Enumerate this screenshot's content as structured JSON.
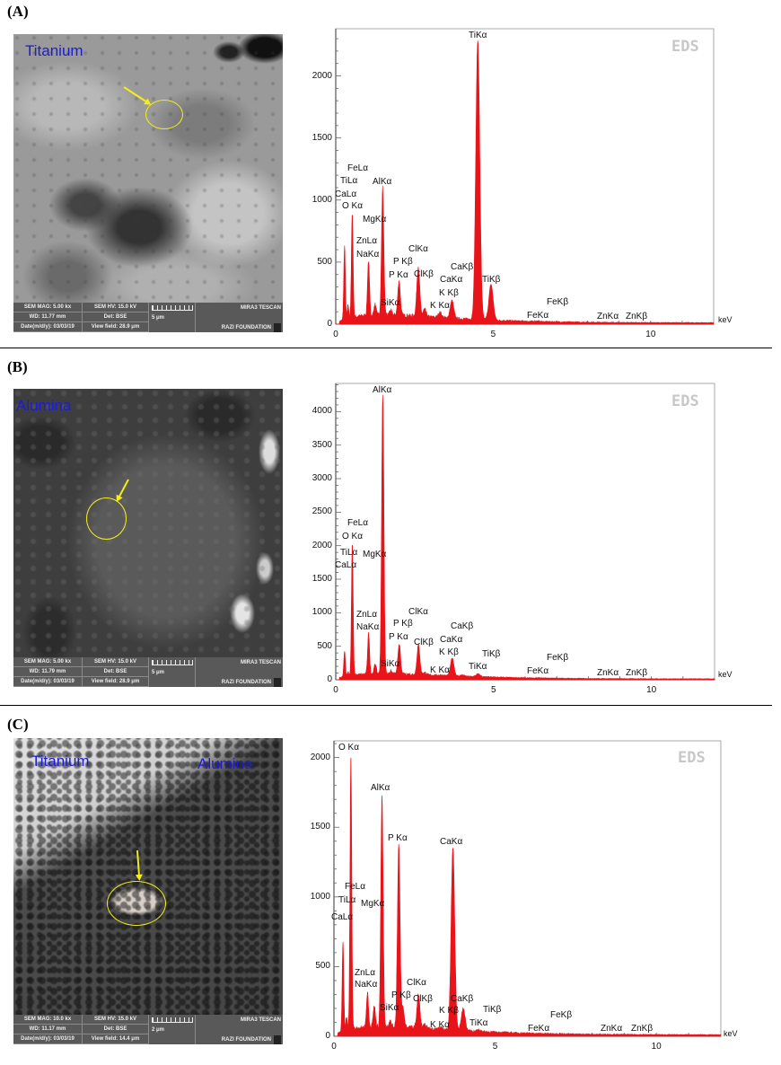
{
  "panels": [
    {
      "label": "(A)",
      "sem": {
        "material_labels": [
          "Titanium"
        ],
        "info": {
          "mag": "SEM MAG: 5.00 kx",
          "hv": "SEM HV: 15.0 kV",
          "vendor": "MIRA3 TESCAN",
          "wd": "WD: 11.77 mm",
          "det": "Det: BSE",
          "scale": "5 μm",
          "date": "Date(m/d/y): 03/03/19",
          "view": "View field: 28.9 μm",
          "lab": "RAZI FOUNDATION"
        }
      }
    },
    {
      "label": "(B)",
      "sem": {
        "material_labels": [
          "Alumina"
        ],
        "info": {
          "mag": "SEM MAG: 5.00 kx",
          "hv": "SEM HV: 15.0 kV",
          "vendor": "MIRA3 TESCAN",
          "wd": "WD: 11.79 mm",
          "det": "Det: BSE",
          "scale": "5 μm",
          "date": "Date(m/d/y): 03/03/19",
          "view": "View field: 28.9 μm",
          "lab": "RAZI FOUNDATION"
        }
      }
    },
    {
      "label": "(C)",
      "sem": {
        "material_labels": [
          "Titanium",
          "Alumina"
        ],
        "info": {
          "mag": "SEM MAG: 10.0 kx",
          "hv": "SEM HV: 15.0 kV",
          "vendor": "MIRA3 TESCAN",
          "wd": "WD: 11.17 mm",
          "det": "Det: BSE",
          "scale": "2 μm",
          "date": "Date(m/d/y): 03/03/19",
          "view": "View field: 14.4 μm",
          "lab": "RAZI FOUNDATION"
        }
      }
    }
  ],
  "colors": {
    "spectrum": "#e8141a",
    "highlight": "#f2ee1a",
    "material_label": "#1b1bd8",
    "watermark": "#c8c8c8"
  },
  "chart_data": [
    {
      "type": "area",
      "title": "EDS",
      "xlabel": "keV",
      "ylabel": "",
      "xlim": [
        0,
        12
      ],
      "ylim": [
        0,
        2380
      ],
      "x_ticks": [
        "0",
        "5",
        "10"
      ],
      "y_ticks": [
        "0",
        "500",
        "1000",
        "1500",
        "2000"
      ],
      "background_counts": 75,
      "peaks": [
        {
          "energy": 0.28,
          "counts": 630
        },
        {
          "energy": 0.39,
          "counts": 150
        },
        {
          "energy": 0.525,
          "counts": 900
        },
        {
          "energy": 1.04,
          "counts": 510
        },
        {
          "energy": 1.25,
          "counts": 160
        },
        {
          "energy": 1.49,
          "counts": 1100
        },
        {
          "energy": 1.74,
          "counts": 110
        },
        {
          "energy": 2.01,
          "counts": 350
        },
        {
          "energy": 2.62,
          "counts": 465
        },
        {
          "energy": 2.82,
          "counts": 120
        },
        {
          "energy": 3.31,
          "counts": 95
        },
        {
          "energy": 3.69,
          "counts": 190
        },
        {
          "energy": 4.51,
          "counts": 2290
        },
        {
          "energy": 4.93,
          "counts": 320
        },
        {
          "energy": 6.4,
          "counts": 25
        }
      ],
      "peak_labels": [
        "TiKα",
        "FeLα",
        "TiLα",
        "CaLα",
        "O Kα",
        "AlKα",
        "MgKα",
        "ZnLα",
        "NaKα",
        "ClKα",
        "P Kβ",
        "P Kα",
        "ClKβ",
        "CaKβ",
        "CaKα",
        "K Kβ",
        "K Kα",
        "SiKα",
        "TiKβ",
        "FeKβ",
        "FeKα",
        "ZnKα",
        "ZnKβ"
      ]
    },
    {
      "type": "area",
      "title": "EDS",
      "xlabel": "keV",
      "ylabel": "",
      "xlim": [
        0,
        12
      ],
      "ylim": [
        0,
        4420
      ],
      "x_ticks": [
        "0",
        "5",
        "10"
      ],
      "y_ticks": [
        "0",
        "500",
        "1000",
        "1500",
        "2000",
        "2500",
        "3000",
        "3500",
        "4000"
      ],
      "background_counts": 90,
      "peaks": [
        {
          "energy": 0.28,
          "counts": 420
        },
        {
          "energy": 0.39,
          "counts": 120
        },
        {
          "energy": 0.525,
          "counts": 2040
        },
        {
          "energy": 1.04,
          "counts": 690
        },
        {
          "energy": 1.25,
          "counts": 240
        },
        {
          "energy": 1.49,
          "counts": 4240
        },
        {
          "energy": 1.74,
          "counts": 130
        },
        {
          "energy": 2.01,
          "counts": 540
        },
        {
          "energy": 2.62,
          "counts": 520
        },
        {
          "energy": 2.82,
          "counts": 110
        },
        {
          "energy": 3.31,
          "counts": 70
        },
        {
          "energy": 3.69,
          "counts": 320
        },
        {
          "energy": 4.01,
          "counts": 70
        },
        {
          "energy": 4.51,
          "counts": 85
        },
        {
          "energy": 6.4,
          "counts": 30
        }
      ],
      "peak_labels": [
        "AlKα",
        "FeLα",
        "O Kα",
        "TiLα",
        "MgKα",
        "CaLα",
        "ZnLα",
        "NaKα",
        "ClKα",
        "P Kβ",
        "P Kα",
        "ClKβ",
        "CaKβ",
        "CaKα",
        "K Kβ",
        "K Kα",
        "SiKα",
        "TiKβ",
        "TiKα",
        "FeKβ",
        "FeKα",
        "ZnKα",
        "ZnKβ"
      ]
    },
    {
      "type": "area",
      "title": "EDS",
      "xlabel": "keV",
      "ylabel": "",
      "xlim": [
        0,
        12
      ],
      "ylim": [
        0,
        2120
      ],
      "x_ticks": [
        "0",
        "5",
        "10"
      ],
      "y_ticks": [
        "0",
        "500",
        "1000",
        "1500",
        "2000"
      ],
      "background_counts": 70,
      "peaks": [
        {
          "energy": 0.28,
          "counts": 680
        },
        {
          "energy": 0.39,
          "counts": 130
        },
        {
          "energy": 0.525,
          "counts": 2030
        },
        {
          "energy": 1.04,
          "counts": 315
        },
        {
          "energy": 1.25,
          "counts": 220
        },
        {
          "energy": 1.49,
          "counts": 1740
        },
        {
          "energy": 1.74,
          "counts": 110
        },
        {
          "energy": 2.01,
          "counts": 1375
        },
        {
          "energy": 2.14,
          "counts": 200
        },
        {
          "energy": 2.62,
          "counts": 300
        },
        {
          "energy": 2.82,
          "counts": 80
        },
        {
          "energy": 3.31,
          "counts": 60
        },
        {
          "energy": 3.69,
          "counts": 1355
        },
        {
          "energy": 4.01,
          "counts": 200
        },
        {
          "energy": 4.51,
          "counts": 45
        },
        {
          "energy": 6.4,
          "counts": 20
        }
      ],
      "peak_labels": [
        "O Kα",
        "AlKα",
        "P Kα",
        "CaKα",
        "FeLα",
        "TiLα",
        "MgKα",
        "CaLα",
        "ZnLα",
        "NaKα",
        "ClKα",
        "P Kβ",
        "ClKβ",
        "CaKβ",
        "SiKα",
        "K Kβ",
        "TiKβ",
        "K Kα",
        "TiKα",
        "FeKβ",
        "FeKα",
        "ZnKα",
        "ZnKβ"
      ]
    }
  ]
}
